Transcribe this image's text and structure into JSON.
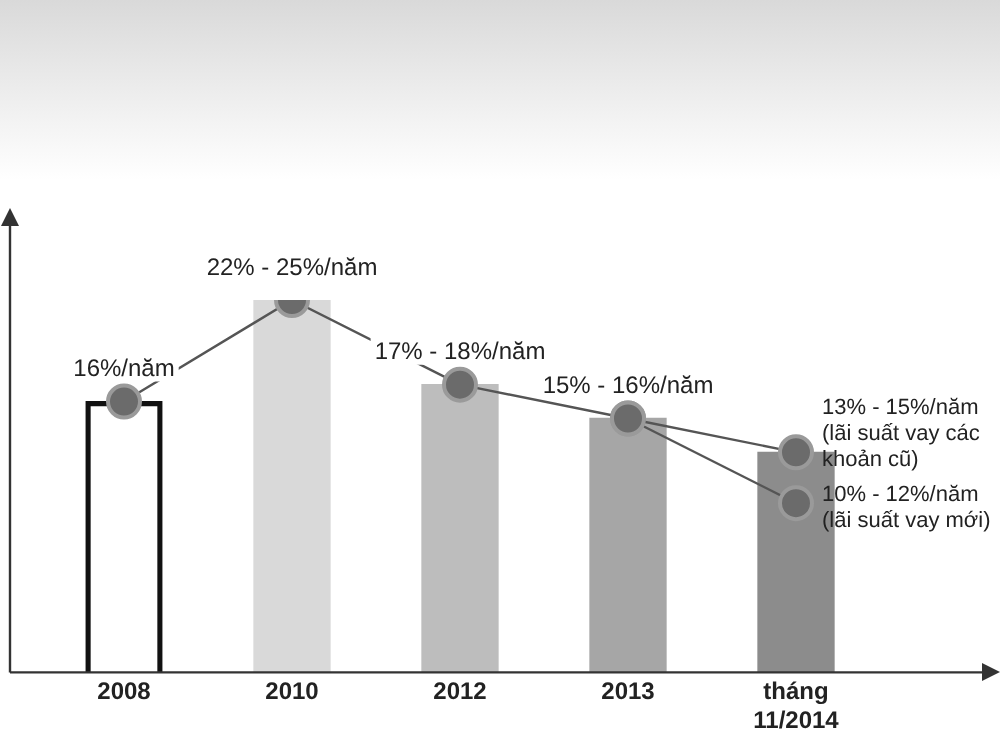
{
  "chart_data": {
    "type": "bar",
    "legend": false,
    "grid": false,
    "marker": "circle",
    "categories": [
      "2008",
      "2010",
      "2012",
      "2013",
      "tháng 11/2014"
    ],
    "series": [
      {
        "values": [
          16,
          22,
          17,
          15,
          13
        ],
        "colors": [
          "#111111",
          "#d9d9d9",
          "#bdbdbd",
          "#a6a6a6",
          "#8c8c8c"
        ]
      },
      {
        "type": "line",
        "color": "#555555",
        "values": [
          16,
          22,
          17,
          15,
          13
        ],
        "value_labels": [
          "16%/năm",
          "22% - 25%/năm",
          "17% - 18%/năm",
          "15% - 16%/năm",
          "13% - 15%/năm (lãi suất vay các khoản cũ)"
        ]
      },
      {
        "type": "line",
        "color": "#555555",
        "values": [
          null,
          null,
          null,
          15,
          10
        ],
        "value_labels": [
          null,
          null,
          null,
          null,
          "10% - 12%/năm (lãi suất vay mới)"
        ]
      }
    ]
  }
}
